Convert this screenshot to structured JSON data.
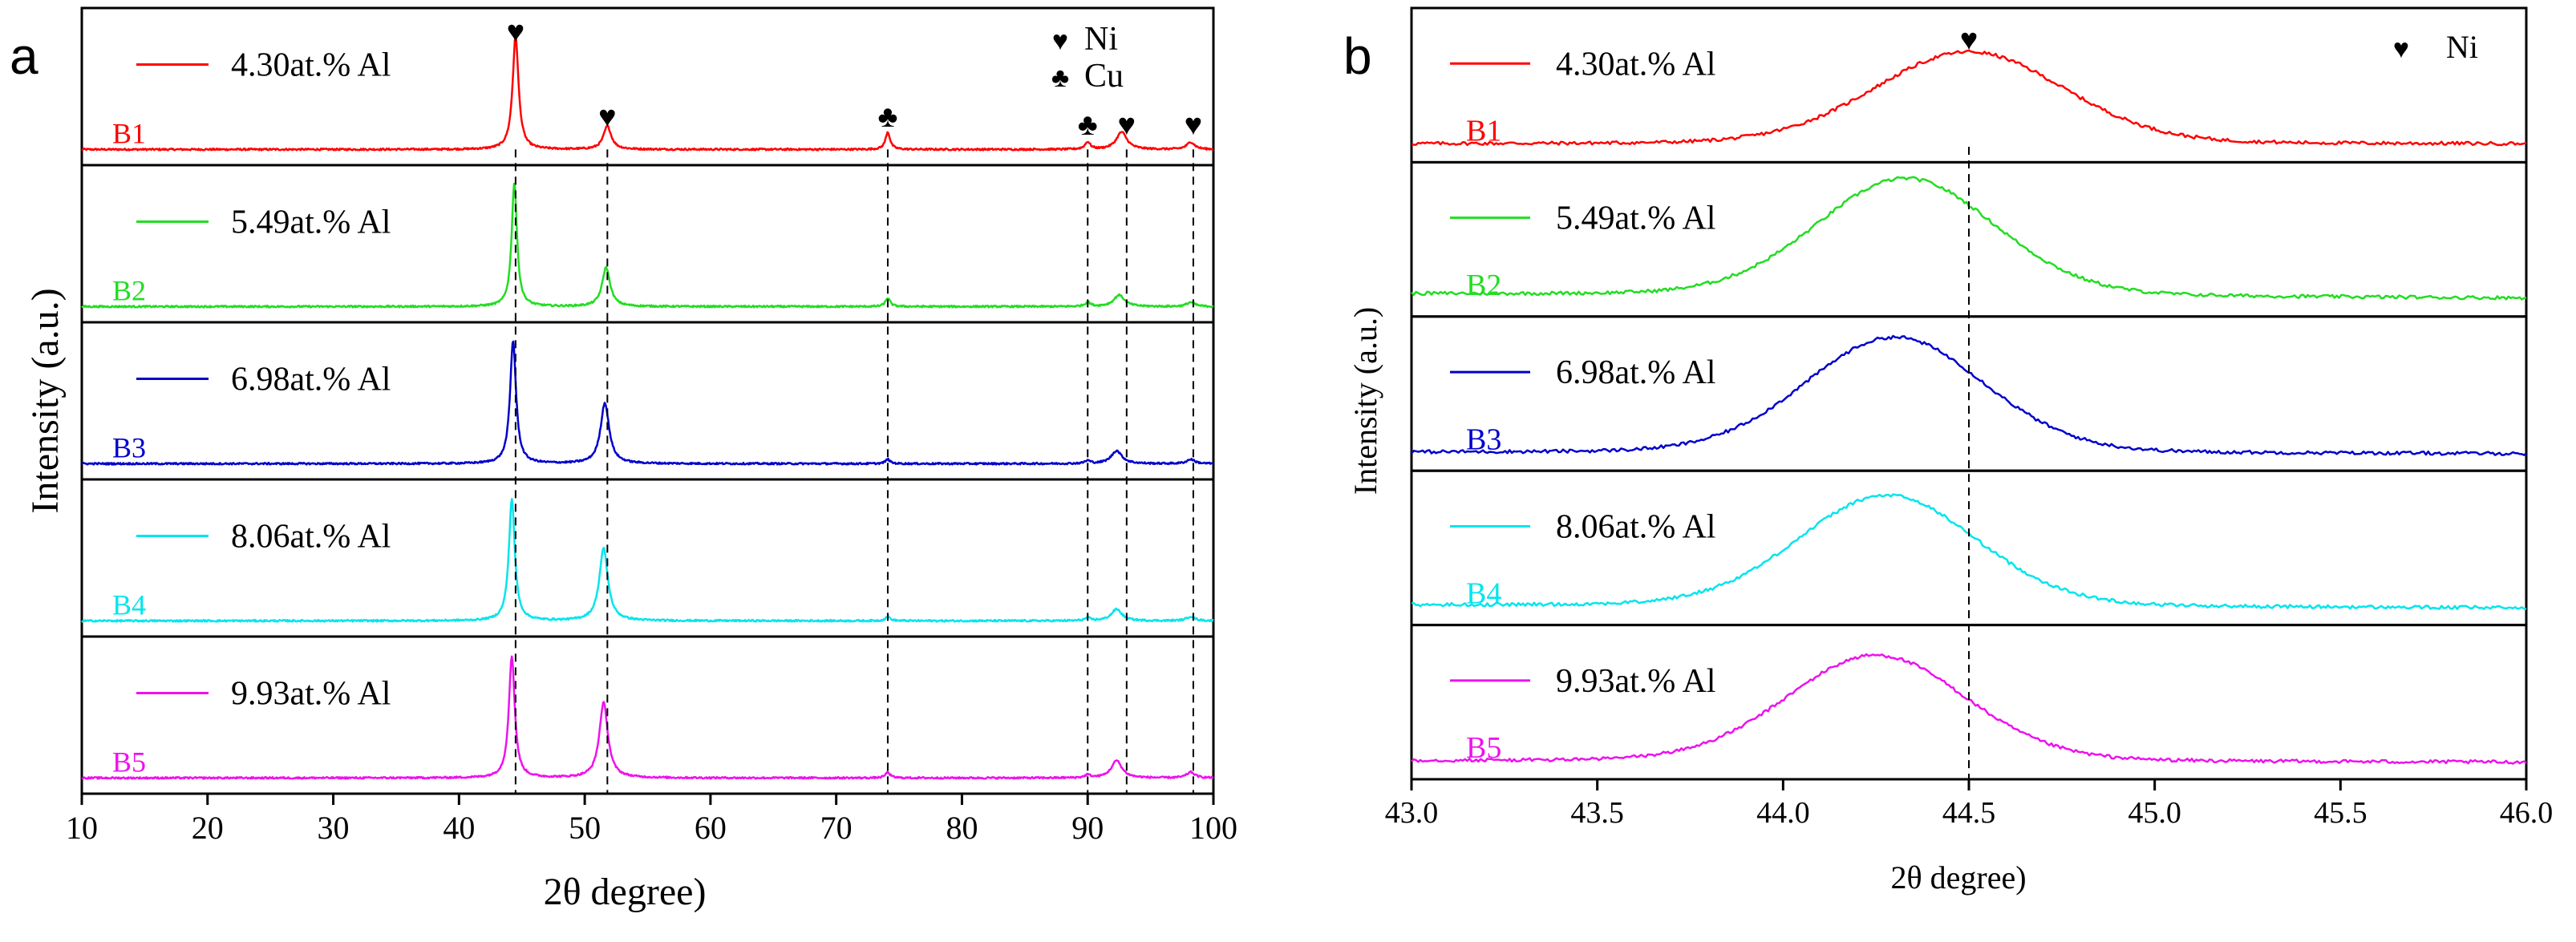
{
  "chart_data": [
    {
      "panel_label": "a",
      "type": "line",
      "xlabel": "2θ  degree)",
      "ylabel": "Intensity (a.u.)",
      "xlim": [
        10,
        100
      ],
      "xticks": [
        "10",
        "20",
        "30",
        "40",
        "50",
        "60",
        "70",
        "80",
        "90",
        "100"
      ],
      "reference_lines_x": [
        44.5,
        51.8,
        74.1,
        90.0,
        93.1,
        98.4
      ],
      "peak_markers": [
        {
          "x": 44.5,
          "stack": 1,
          "symbol": "♥"
        },
        {
          "x": 51.8,
          "stack": 1,
          "symbol": "♥"
        },
        {
          "x": 74.1,
          "stack": 1,
          "symbol": "♣"
        },
        {
          "x": 90.0,
          "stack": 1,
          "symbol": "♣"
        },
        {
          "x": 93.1,
          "stack": 1,
          "symbol": "♥"
        },
        {
          "x": 98.4,
          "stack": 1,
          "symbol": "♥"
        }
      ],
      "phase_legend": [
        {
          "symbol": "♥",
          "label": "Ni"
        },
        {
          "symbol": "♣",
          "label": "Cu"
        }
      ],
      "series": [
        {
          "name": "B1",
          "legend": "4.30at.% Al",
          "color": "#ff0000",
          "peaks": [
            {
              "x": 44.5,
              "h": 0.78,
              "w": 0.45
            },
            {
              "x": 51.8,
              "h": 0.16,
              "w": 0.6
            },
            {
              "x": 74.1,
              "h": 0.12,
              "w": 0.35
            },
            {
              "x": 90.0,
              "h": 0.05,
              "w": 0.4
            },
            {
              "x": 92.7,
              "h": 0.12,
              "w": 0.8
            },
            {
              "x": 98.2,
              "h": 0.05,
              "w": 0.6
            }
          ]
        },
        {
          "name": "B2",
          "legend": "5.49at.% Al",
          "color": "#22dd22",
          "peaks": [
            {
              "x": 44.4,
              "h": 0.86,
              "w": 0.4
            },
            {
              "x": 51.7,
              "h": 0.27,
              "w": 0.6
            },
            {
              "x": 74.1,
              "h": 0.06,
              "w": 0.35
            },
            {
              "x": 90.0,
              "h": 0.03,
              "w": 0.4
            },
            {
              "x": 92.5,
              "h": 0.08,
              "w": 0.8
            },
            {
              "x": 98.2,
              "h": 0.03,
              "w": 0.6
            }
          ]
        },
        {
          "name": "B3",
          "legend": "6.98at.% Al",
          "color": "#0000cc",
          "peaks": [
            {
              "x": 44.3,
              "h": 0.85,
              "w": 0.45
            },
            {
              "x": 51.6,
              "h": 0.42,
              "w": 0.65
            },
            {
              "x": 74.1,
              "h": 0.03,
              "w": 0.35
            },
            {
              "x": 90.0,
              "h": 0.02,
              "w": 0.4
            },
            {
              "x": 92.3,
              "h": 0.09,
              "w": 0.8
            },
            {
              "x": 98.2,
              "h": 0.03,
              "w": 0.6
            }
          ]
        },
        {
          "name": "B4",
          "legend": "8.06at.% Al",
          "color": "#00e5ee",
          "peaks": [
            {
              "x": 44.2,
              "h": 0.84,
              "w": 0.45
            },
            {
              "x": 51.5,
              "h": 0.5,
              "w": 0.65
            },
            {
              "x": 74.1,
              "h": 0.03,
              "w": 0.35
            },
            {
              "x": 90.0,
              "h": 0.02,
              "w": 0.4
            },
            {
              "x": 92.3,
              "h": 0.08,
              "w": 0.8
            },
            {
              "x": 98.2,
              "h": 0.03,
              "w": 0.6
            }
          ]
        },
        {
          "name": "B5",
          "legend": "9.93at.% Al",
          "color": "#ee11ee",
          "peaks": [
            {
              "x": 44.2,
              "h": 0.84,
              "w": 0.45
            },
            {
              "x": 51.5,
              "h": 0.52,
              "w": 0.65
            },
            {
              "x": 74.1,
              "h": 0.04,
              "w": 0.35
            },
            {
              "x": 90.0,
              "h": 0.02,
              "w": 0.4
            },
            {
              "x": 92.3,
              "h": 0.12,
              "w": 0.8
            },
            {
              "x": 98.2,
              "h": 0.04,
              "w": 0.6
            }
          ]
        }
      ]
    },
    {
      "panel_label": "b",
      "type": "line",
      "xlabel": "2θ  degree)",
      "ylabel": "Intensity (a.u.)",
      "xlim": [
        43.0,
        46.0
      ],
      "xticks": [
        "43.0",
        "43.5",
        "44.0",
        "44.5",
        "45.0",
        "45.5",
        "46.0"
      ],
      "reference_lines_x": [
        44.5
      ],
      "peak_markers": [
        {
          "x": 44.5,
          "stack": 1,
          "symbol": "♥"
        }
      ],
      "phase_legend": [
        {
          "symbol": "♥",
          "label": "Ni"
        }
      ],
      "series": [
        {
          "name": "B1",
          "legend": "4.30at.% Al",
          "color": "#ff0000",
          "center": 44.5,
          "h": 0.58,
          "w": 0.34,
          "base_left": 0.02,
          "base_right": 0.02
        },
        {
          "name": "B2",
          "legend": "5.49at.% Al",
          "color": "#22dd22",
          "center": 44.33,
          "h": 0.74,
          "w": 0.32,
          "base_left": 0.05,
          "base_right": 0.02
        },
        {
          "name": "B3",
          "legend": "6.98at.% Al",
          "color": "#0000cc",
          "center": 44.3,
          "h": 0.73,
          "w": 0.32,
          "base_left": 0.02,
          "base_right": 0.01
        },
        {
          "name": "B4",
          "legend": "8.06at.% Al",
          "color": "#00e5ee",
          "center": 44.28,
          "h": 0.7,
          "w": 0.32,
          "base_left": 0.03,
          "base_right": 0.01
        },
        {
          "name": "B5",
          "legend": "9.93at.% Al",
          "color": "#ee11ee",
          "center": 44.25,
          "h": 0.67,
          "w": 0.32,
          "base_left": 0.02,
          "base_right": 0.01
        }
      ]
    }
  ]
}
